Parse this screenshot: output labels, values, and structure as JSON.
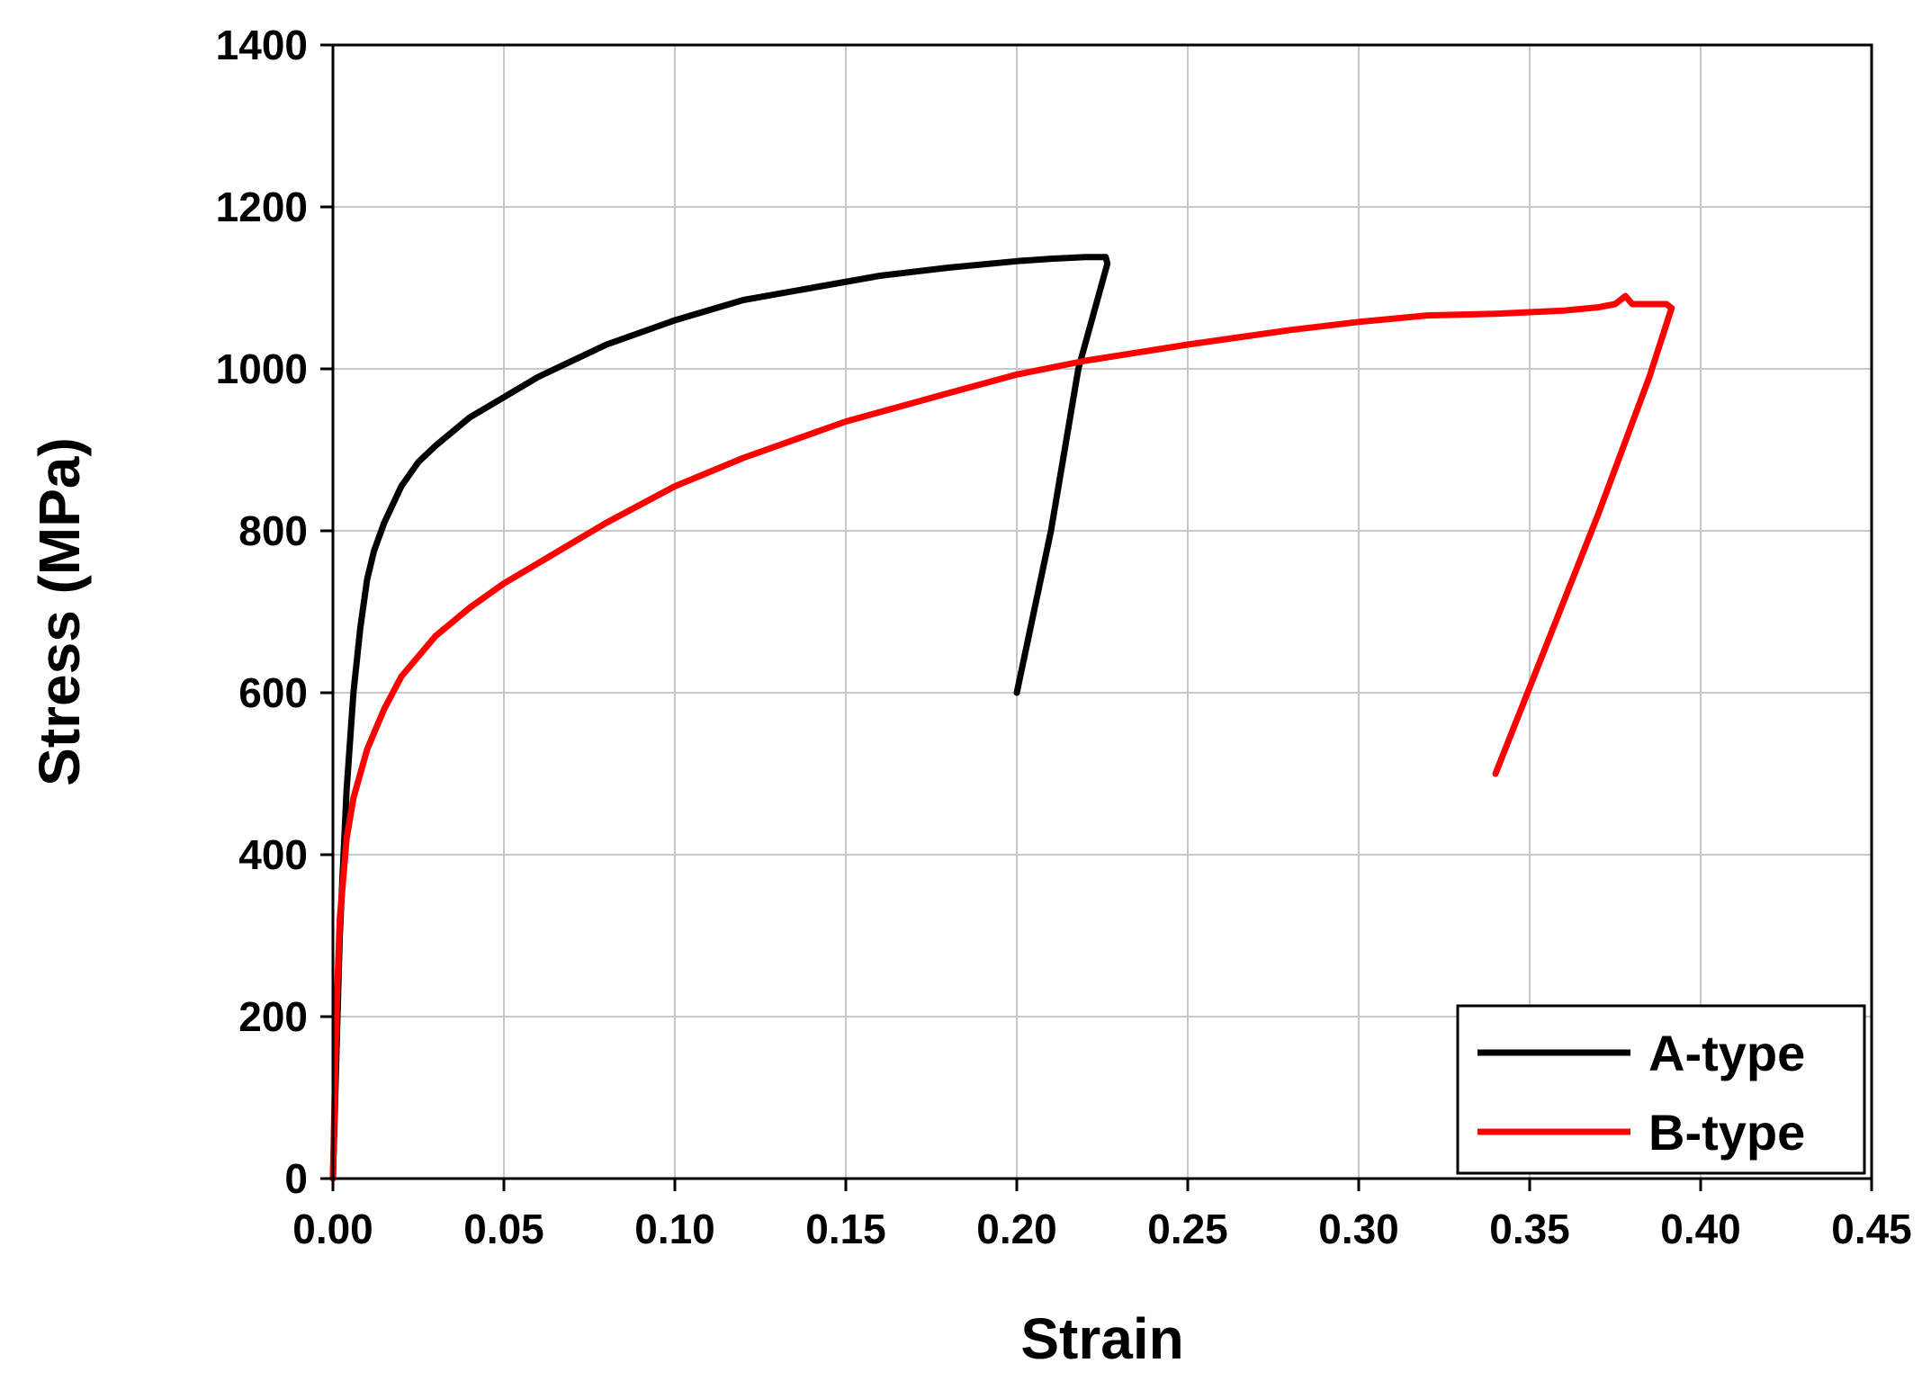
{
  "chart_data": {
    "type": "line",
    "xlabel": "Strain",
    "ylabel": "Stress (MPa)",
    "xlim": [
      0,
      0.45
    ],
    "ylim": [
      0,
      1400
    ],
    "xticks": [
      "0.00",
      "0.05",
      "0.10",
      "0.15",
      "0.20",
      "0.25",
      "0.30",
      "0.35",
      "0.40",
      "0.45"
    ],
    "yticks": [
      "0",
      "200",
      "400",
      "600",
      "800",
      "1000",
      "1200",
      "1400"
    ],
    "grid": true,
    "legend_position": "bottom-right",
    "series": [
      {
        "name": "A-type",
        "color": "#000000",
        "x": [
          0,
          0.002,
          0.004,
          0.006,
          0.008,
          0.01,
          0.012,
          0.015,
          0.02,
          0.025,
          0.03,
          0.04,
          0.05,
          0.06,
          0.08,
          0.1,
          0.12,
          0.14,
          0.16,
          0.18,
          0.2,
          0.21,
          0.22,
          0.226,
          0.2265,
          0.218,
          0.21,
          0.2
        ],
        "y": [
          0,
          300,
          480,
          600,
          680,
          740,
          775,
          810,
          855,
          885,
          905,
          940,
          965,
          990,
          1030,
          1060,
          1085,
          1100,
          1115,
          1125,
          1133,
          1136,
          1138,
          1138,
          1130,
          1000,
          800,
          600
        ]
      },
      {
        "name": "B-type",
        "color": "#ff0000",
        "x": [
          0,
          0.001,
          0.002,
          0.004,
          0.006,
          0.01,
          0.015,
          0.02,
          0.03,
          0.04,
          0.05,
          0.06,
          0.08,
          0.1,
          0.12,
          0.15,
          0.18,
          0.2,
          0.22,
          0.25,
          0.28,
          0.3,
          0.32,
          0.34,
          0.36,
          0.37,
          0.375,
          0.378,
          0.38,
          0.385,
          0.39,
          0.3915,
          0.385,
          0.37,
          0.355,
          0.34
        ],
        "y": [
          0,
          200,
          320,
          420,
          470,
          530,
          580,
          620,
          670,
          705,
          735,
          760,
          810,
          855,
          890,
          935,
          970,
          993,
          1010,
          1030,
          1048,
          1058,
          1066,
          1068,
          1072,
          1076,
          1080,
          1090,
          1080,
          1080,
          1080,
          1075,
          990,
          820,
          660,
          500
        ]
      }
    ]
  }
}
